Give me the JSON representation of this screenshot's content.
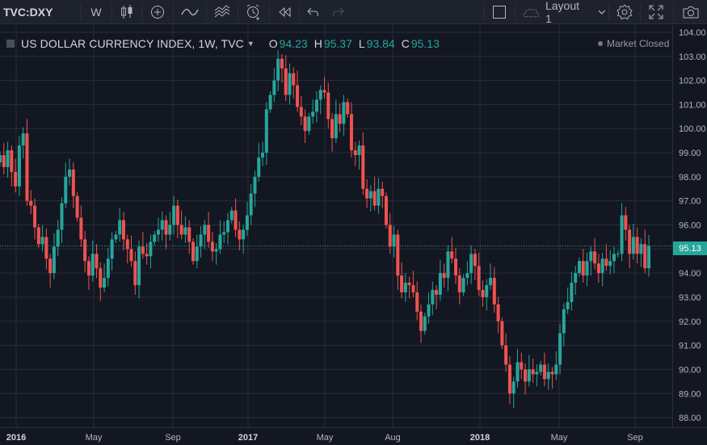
{
  "toolbar": {
    "symbol": "TVC:DXY",
    "interval": "W",
    "layout_label": "Layout 1"
  },
  "legend": {
    "title": "US DOLLAR CURRENCY INDEX, 1W, TVC",
    "o_label": "O",
    "o_value": "94.23",
    "h_label": "H",
    "h_value": "95.37",
    "l_label": "L",
    "l_value": "93.84",
    "c_label": "C",
    "c_value": "95.13"
  },
  "market_status": "Market Closed",
  "last_price": "95.13",
  "colors": {
    "up": "#26a69a",
    "down": "#ef5350",
    "background": "#131722",
    "grid": "#2a2e39"
  },
  "chart_data": {
    "type": "candlestick",
    "title": "US DOLLAR CURRENCY INDEX, 1W, TVC",
    "ylim": [
      87.6,
      104.3
    ],
    "yticks": [
      "104.00",
      "103.00",
      "102.00",
      "101.00",
      "100.00",
      "99.00",
      "98.00",
      "97.00",
      "96.00",
      "95.00",
      "94.00",
      "93.00",
      "92.00",
      "91.00",
      "90.00",
      "89.00",
      "88.00"
    ],
    "xticks": [
      "2016",
      "May",
      "Sep",
      "2017",
      "May",
      "Aug",
      "2018",
      "May",
      "Sep"
    ],
    "last_value": 95.13,
    "closes": [
      98.9,
      98.4,
      99.1,
      98.2,
      97.6,
      99.3,
      99.8,
      97.0,
      96.8,
      95.9,
      95.2,
      95.5,
      94.6,
      94.0,
      95.1,
      95.8,
      96.9,
      98.0,
      98.3,
      97.2,
      96.3,
      95.4,
      94.5,
      93.9,
      94.8,
      94.2,
      93.4,
      93.8,
      94.6,
      95.4,
      95.6,
      96.2,
      95.4,
      95.0,
      94.5,
      93.5,
      95.1,
      94.8,
      94.7,
      95.3,
      95.6,
      95.8,
      96.2,
      95.6,
      96.0,
      96.8,
      96.0,
      95.6,
      95.9,
      95.3,
      94.5,
      95.1,
      95.6,
      96.0,
      95.3,
      94.9,
      95.0,
      95.6,
      95.7,
      96.2,
      96.6,
      95.8,
      95.4,
      95.8,
      96.4,
      97.3,
      98.0,
      98.8,
      99.0,
      100.8,
      101.4,
      102.0,
      102.9,
      102.5,
      101.4,
      102.3,
      101.8,
      100.9,
      100.5,
      99.9,
      100.5,
      100.7,
      101.2,
      101.6,
      101.5,
      100.4,
      99.6,
      100.6,
      100.2,
      101.1,
      100.6,
      99.1,
      98.9,
      99.3,
      97.5,
      97.1,
      97.4,
      96.8,
      97.5,
      97.2,
      96.0,
      95.1,
      95.6,
      93.9,
      93.2,
      93.6,
      93.5,
      93.2,
      92.4,
      91.6,
      92.2,
      92.7,
      93.3,
      93.1,
      94.0,
      93.8,
      94.9,
      94.6,
      93.9,
      93.2,
      93.8,
      94.0,
      94.8,
      94.3,
      93.3,
      93.0,
      93.5,
      93.8,
      92.7,
      92.0,
      91.0,
      90.2,
      89.0,
      89.5,
      90.3,
      90.0,
      89.5,
      90.0,
      89.8,
      89.9,
      90.2,
      89.6,
      89.9,
      89.8,
      90.2,
      91.5,
      92.5,
      92.8,
      93.6,
      94.0,
      94.5,
      93.9,
      94.5,
      94.9,
      94.4,
      94.0,
      94.6,
      94.3,
      94.5,
      94.8,
      94.8,
      96.4,
      95.8,
      94.8,
      95.5,
      94.8,
      95.2,
      94.2,
      95.13
    ],
    "ohlc_last": {
      "o": 94.23,
      "h": 95.37,
      "l": 93.84,
      "c": 95.13
    }
  }
}
